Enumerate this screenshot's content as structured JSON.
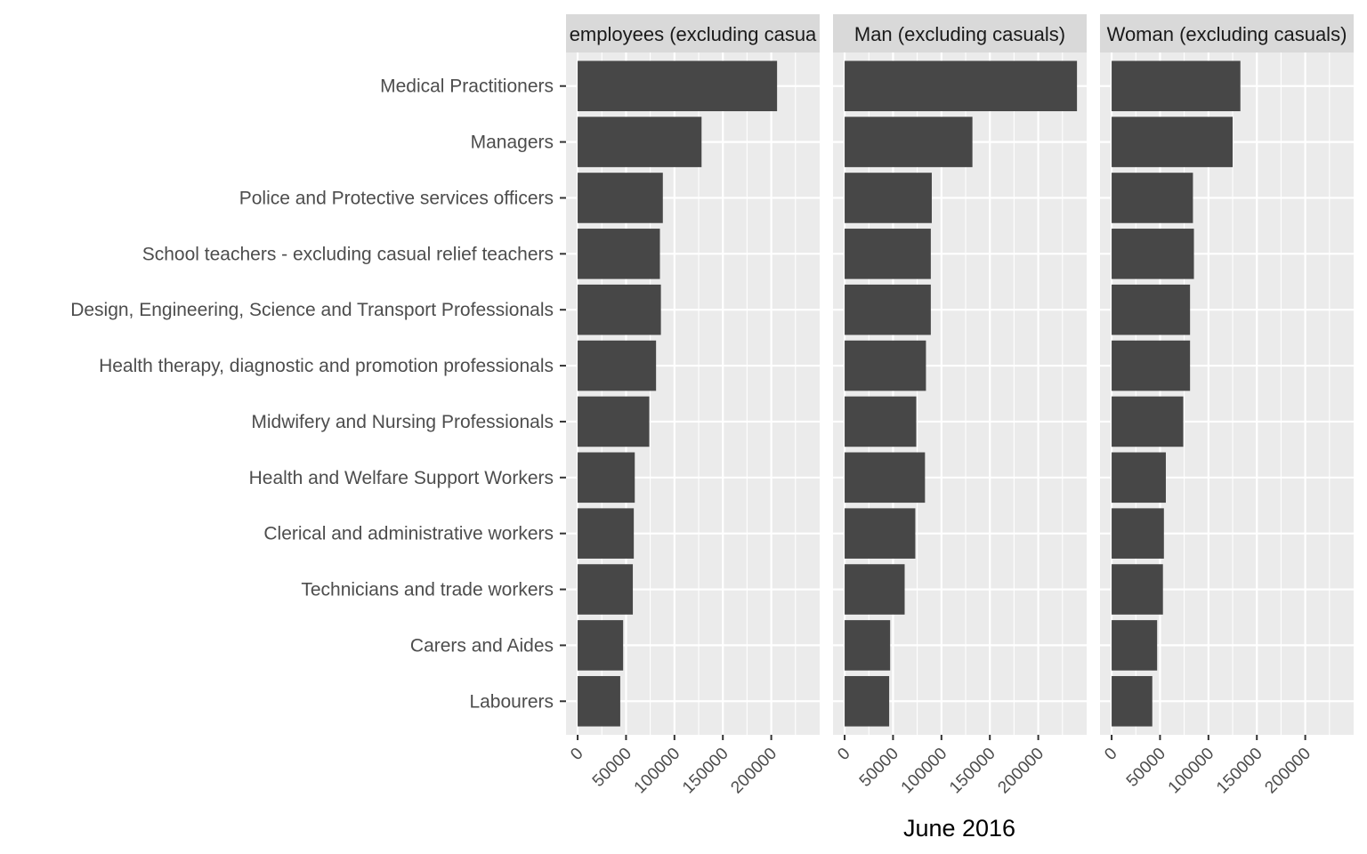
{
  "chart_data": {
    "type": "bar",
    "orientation": "horizontal",
    "xlabel": "June 2016",
    "ylabel": "",
    "xlim": [
      -12000,
      250000
    ],
    "x_ticks": [
      0,
      50000,
      100000,
      150000,
      200000
    ],
    "x_tick_labels": [
      "0",
      "50000",
      "100000",
      "150000",
      "200000"
    ],
    "grid": true,
    "legend": "none",
    "colors": {
      "bar": "#474747",
      "panel": "#ebebeb",
      "strip": "#d9d9d9",
      "grid": "#ffffff"
    },
    "categories": [
      "Medical Practitioners",
      "Managers",
      "Police and Protective services officers",
      "School teachers - excluding casual relief teachers",
      "Design, Engineering, Science and Transport Professionals",
      "Health therapy, diagnostic and promotion professionals",
      "Midwifery and Nursing Professionals",
      "Health and Welfare Support Workers",
      "Clerical and administrative workers",
      "Technicians and trade workers",
      "Carers and Aides",
      "Labourers"
    ],
    "series": [
      {
        "name": "employees (excluding casua",
        "values": [
          206000,
          128000,
          88000,
          85000,
          86000,
          81000,
          74000,
          59000,
          58000,
          57000,
          47000,
          44000
        ]
      },
      {
        "name": "Man (excluding casuals)",
        "values": [
          240000,
          132000,
          90000,
          89000,
          89000,
          84000,
          74000,
          83000,
          73000,
          62000,
          47000,
          46000
        ]
      },
      {
        "name": "Woman (excluding casuals)",
        "values": [
          133000,
          125000,
          84000,
          85000,
          81000,
          81000,
          74000,
          56000,
          54000,
          53000,
          47000,
          42000
        ]
      }
    ]
  }
}
